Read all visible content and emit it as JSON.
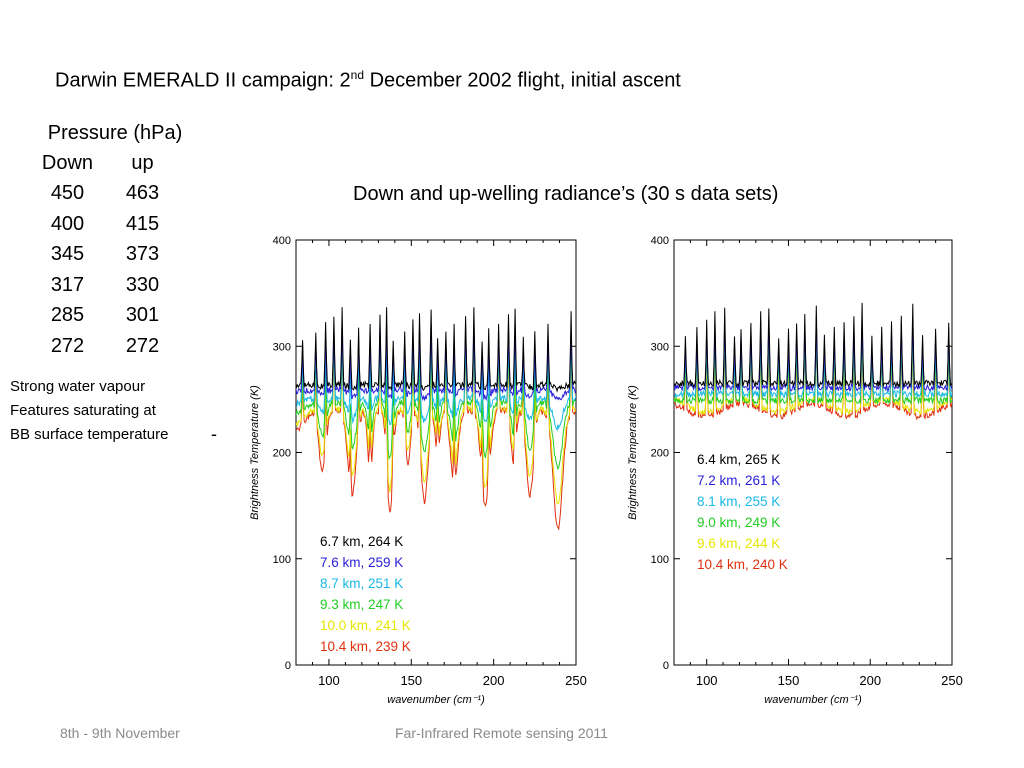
{
  "title": {
    "main": "Darwin EMERALD II campaign:  2",
    "sup": "nd",
    "rest": " December 2002 flight, initial ascent"
  },
  "pressure": {
    "header": "Pressure (hPa)",
    "col_down": "Down",
    "col_up": "up",
    "rows": [
      [
        "450",
        "463"
      ],
      [
        "400",
        "415"
      ],
      [
        "345",
        "373"
      ],
      [
        "317",
        "330"
      ],
      [
        "285",
        "301"
      ],
      [
        "272",
        "272"
      ]
    ]
  },
  "note": [
    "Strong water vapour",
    "Features saturating at",
    "BB surface temperature"
  ],
  "subtitle": "Down and up-welling radiance’s (30 s data sets)",
  "footer": {
    "left": "8th - 9th November",
    "center": "Far-Infrared Remote sensing 2011"
  },
  "chart_data": [
    {
      "type": "line",
      "panel": "left",
      "xlabel": "wavenumber (cm⁻¹)",
      "ylabel": "Brightness Temperature (K)",
      "xlim": [
        80,
        250
      ],
      "ylim": [
        0,
        400
      ],
      "xticks": [
        100,
        150,
        200,
        250
      ],
      "yticks": [
        0,
        100,
        200,
        300,
        400
      ],
      "series": [
        {
          "name": "6.7 km, 264 K",
          "label_text": "6.7  km,  264  K",
          "color": "#000000",
          "baseline": 264,
          "dip": 0.03
        },
        {
          "name": "7.6 km, 259 K",
          "label_text": "7.6  km,  259  K",
          "color": "#2a1fd6",
          "baseline": 259,
          "dip": 0.08
        },
        {
          "name": "8.7 km, 251 K",
          "label_text": "8.7  km,  251  K",
          "color": "#1ab8e6",
          "baseline": 251,
          "dip": 0.25
        },
        {
          "name": "9.3 km, 247 K",
          "label_text": "9.3  km,  247  K",
          "color": "#22cc22",
          "baseline": 247,
          "dip": 0.55
        },
        {
          "name": "10.0 km, 241 K",
          "label_text": "10.0  km,  241  K",
          "color": "#e6e600",
          "baseline": 241,
          "dip": 0.8
        },
        {
          "name": "10.4 km, 239 K",
          "label_text": "10.4  km,  239  K",
          "color": "#e03010",
          "baseline": 239,
          "dip": 1.0
        }
      ]
    },
    {
      "type": "line",
      "panel": "right",
      "xlabel": "wavenumber (cm⁻¹)",
      "ylabel": "Brightness Temperature (K)",
      "xlim": [
        80,
        250
      ],
      "ylim": [
        0,
        400
      ],
      "xticks": [
        100,
        150,
        200,
        250
      ],
      "yticks": [
        0,
        100,
        200,
        300,
        400
      ],
      "series": [
        {
          "name": "6.4 km, 265 K",
          "label_text": "6.4  km,  265  K",
          "color": "#000000",
          "baseline": 265
        },
        {
          "name": "7.2 km, 261 K",
          "label_text": "7.2  km,  261  K",
          "color": "#2a1fd6",
          "baseline": 261
        },
        {
          "name": "8.1 km, 255 K",
          "label_text": "8.1  km,  255  K",
          "color": "#1ab8e6",
          "baseline": 255
        },
        {
          "name": "9.0 km, 249 K",
          "label_text": "9.0  km,  249  K",
          "color": "#22cc22",
          "baseline": 249
        },
        {
          "name": "9.6 km, 244 K",
          "label_text": "9.6  km,  244  K",
          "color": "#e6e600",
          "baseline": 244
        },
        {
          "name": "10.4 km, 240 K",
          "label_text": "10.4  km,  240  K",
          "color": "#e03010",
          "baseline": 240
        }
      ]
    }
  ]
}
